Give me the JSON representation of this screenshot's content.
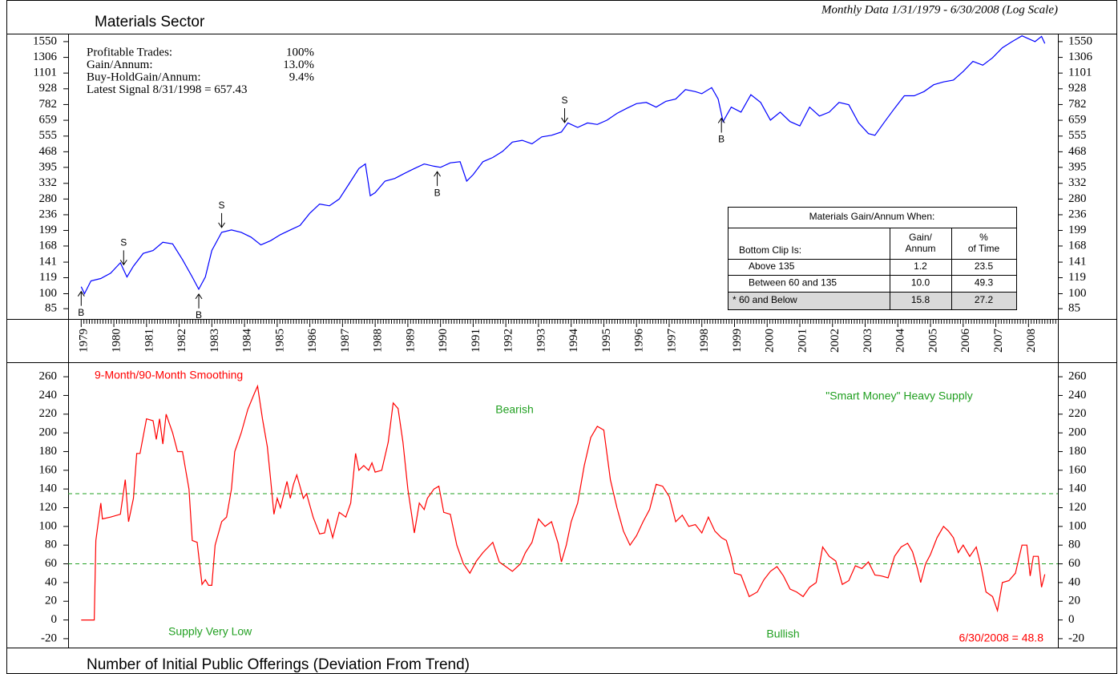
{
  "chart_data": [
    {
      "type": "line",
      "title": "Materials Sector",
      "subtitle": "Monthly Data 1/31/1979 - 6/30/2008 (Log Scale)",
      "log_scale": true,
      "ylim": [
        76,
        1690
      ],
      "yticks": [
        85,
        100,
        119,
        141,
        168,
        199,
        236,
        280,
        332,
        395,
        468,
        555,
        659,
        782,
        928,
        1101,
        1306,
        1550
      ],
      "xlim": [
        1978.6,
        2008.9
      ],
      "xticks": [
        1979,
        1980,
        1981,
        1982,
        1983,
        1984,
        1985,
        1986,
        1987,
        1988,
        1989,
        1990,
        1991,
        1992,
        1993,
        1994,
        1995,
        1996,
        1997,
        1998,
        1999,
        2000,
        2001,
        2002,
        2003,
        2004,
        2005,
        2006,
        2007,
        2008
      ],
      "series": [
        {
          "color": "#0000ff",
          "x": [
            1979.0,
            1979.1,
            1979.3,
            1979.6,
            1979.9,
            1980.2,
            1980.4,
            1980.6,
            1980.9,
            1981.2,
            1981.5,
            1981.8,
            1982.1,
            1982.4,
            1982.6,
            1982.8,
            1983.0,
            1983.3,
            1983.6,
            1983.9,
            1984.2,
            1984.5,
            1984.8,
            1985.1,
            1985.4,
            1985.7,
            1986.0,
            1986.3,
            1986.6,
            1986.9,
            1987.2,
            1987.5,
            1987.7,
            1987.85,
            1988.0,
            1988.3,
            1988.6,
            1988.9,
            1989.2,
            1989.5,
            1989.8,
            1990.0,
            1990.3,
            1990.6,
            1990.8,
            1991.0,
            1991.3,
            1991.6,
            1991.9,
            1992.2,
            1992.5,
            1992.8,
            1993.1,
            1993.4,
            1993.7,
            1993.9,
            1994.2,
            1994.5,
            1994.8,
            1995.1,
            1995.4,
            1995.7,
            1996.0,
            1996.3,
            1996.6,
            1996.9,
            1997.2,
            1997.5,
            1997.8,
            1998.0,
            1998.3,
            1998.5,
            1998.65,
            1998.9,
            1999.2,
            1999.5,
            1999.8,
            2000.1,
            2000.4,
            2000.7,
            2001.0,
            2001.3,
            2001.6,
            2001.9,
            2002.2,
            2002.5,
            2002.8,
            2003.1,
            2003.3,
            2003.6,
            2003.9,
            2004.2,
            2004.5,
            2004.8,
            2005.1,
            2005.4,
            2005.7,
            2006.0,
            2006.3,
            2006.6,
            2006.9,
            2007.2,
            2007.5,
            2007.8,
            2008.0,
            2008.2,
            2008.4,
            2008.5
          ],
          "values": [
            108,
            100,
            115,
            118,
            125,
            140,
            120,
            135,
            155,
            160,
            175,
            172,
            145,
            120,
            105,
            120,
            160,
            195,
            200,
            195,
            185,
            170,
            178,
            190,
            200,
            210,
            240,
            265,
            260,
            280,
            330,
            390,
            410,
            290,
            300,
            340,
            350,
            370,
            390,
            410,
            400,
            395,
            415,
            420,
            340,
            365,
            420,
            440,
            470,
            520,
            530,
            510,
            550,
            560,
            580,
            640,
            610,
            640,
            630,
            660,
            710,
            750,
            790,
            800,
            760,
            810,
            830,
            920,
            900,
            880,
            940,
            830,
            650,
            760,
            720,
            870,
            800,
            660,
            720,
            650,
            620,
            760,
            690,
            720,
            800,
            780,
            640,
            570,
            560,
            650,
            750,
            860,
            860,
            900,
            970,
            1000,
            1020,
            1120,
            1250,
            1200,
            1300,
            1450,
            1550,
            1650,
            1600,
            1550,
            1640,
            1520
          ]
        }
      ],
      "signals": [
        {
          "x": 1979.0,
          "label": "B"
        },
        {
          "x": 1980.3,
          "label": "S"
        },
        {
          "x": 1982.6,
          "label": "B"
        },
        {
          "x": 1983.3,
          "label": "S"
        },
        {
          "x": 1989.9,
          "label": "B"
        },
        {
          "x": 1993.8,
          "label": "S"
        },
        {
          "x": 1998.6,
          "label": "B"
        }
      ],
      "stats": [
        {
          "label": "Profitable Trades:",
          "value": "100%"
        },
        {
          "label": "Gain/Annum:",
          "value": "13.0%"
        },
        {
          "label": "Buy-HoldGain/Annum:",
          "value": "9.4%"
        },
        {
          "label": "Latest Signal 8/31/1998 = 657.43",
          "value": ""
        }
      ],
      "table": {
        "title": "Materials Gain/Annum When:",
        "header": [
          [
            "Bottom Clip Is:"
          ],
          [
            "Gain/",
            "Annum"
          ],
          [
            "%",
            "of Time"
          ]
        ],
        "rows": [
          [
            "Above 135",
            "1.2",
            "23.5"
          ],
          [
            "Between 60 and 135",
            "10.0",
            "49.3"
          ],
          [
            "* 60 and Below",
            "15.8",
            "27.2"
          ]
        ],
        "highlight_row": 2
      }
    },
    {
      "type": "line",
      "title": "Number of Initial Public Offerings (Deviation From Trend)",
      "ylim": [
        -29.5,
        275.5
      ],
      "yticks": [
        -20,
        0,
        20,
        40,
        60,
        80,
        100,
        120,
        140,
        160,
        180,
        200,
        220,
        240,
        260
      ],
      "xlim": [
        1978.6,
        2008.9
      ],
      "hlines": [
        135,
        60
      ],
      "hline_color": "#22a022",
      "annotations": [
        {
          "text": "9-Month/90-Month Smoothing",
          "color": "#ff0000"
        },
        {
          "text": "Bearish",
          "color": "#22a022"
        },
        {
          "text": "\"Smart Money\" Heavy Supply",
          "color": "#22a022"
        },
        {
          "text": "Supply Very Low",
          "color": "#22a022"
        },
        {
          "text": "Bullish",
          "color": "#22a022"
        },
        {
          "text": "6/30/2008 = 48.8",
          "color": "#ff0000"
        }
      ],
      "series": [
        {
          "color": "#ff0000",
          "x": [
            1979.0,
            1979.4,
            1979.45,
            1979.6,
            1979.65,
            1979.9,
            1980.2,
            1980.35,
            1980.45,
            1980.6,
            1980.7,
            1980.8,
            1981.0,
            1981.2,
            1981.3,
            1981.4,
            1981.5,
            1981.6,
            1981.8,
            1981.95,
            1982.1,
            1982.3,
            1982.4,
            1982.55,
            1982.7,
            1982.8,
            1982.9,
            1983.0,
            1983.1,
            1983.3,
            1983.45,
            1983.6,
            1983.7,
            1983.9,
            1984.1,
            1984.3,
            1984.4,
            1984.55,
            1984.7,
            1984.8,
            1984.9,
            1985.0,
            1985.1,
            1985.3,
            1985.4,
            1985.5,
            1985.6,
            1985.8,
            1985.9,
            1986.1,
            1986.3,
            1986.45,
            1986.55,
            1986.7,
            1986.9,
            1987.1,
            1987.25,
            1987.4,
            1987.5,
            1987.65,
            1987.8,
            1987.9,
            1988.0,
            1988.2,
            1988.4,
            1988.55,
            1988.7,
            1988.85,
            1989.0,
            1989.2,
            1989.35,
            1989.5,
            1989.6,
            1989.8,
            1989.95,
            1990.1,
            1990.3,
            1990.5,
            1990.7,
            1990.9,
            1991.1,
            1991.3,
            1991.6,
            1991.8,
            1992.0,
            1992.2,
            1992.45,
            1992.6,
            1992.8,
            1993.0,
            1993.2,
            1993.4,
            1993.6,
            1993.7,
            1993.85,
            1994.0,
            1994.2,
            1994.4,
            1994.6,
            1994.8,
            1995.0,
            1995.2,
            1995.4,
            1995.6,
            1995.8,
            1996.0,
            1996.2,
            1996.4,
            1996.6,
            1996.8,
            1997.0,
            1997.2,
            1997.4,
            1997.6,
            1997.8,
            1998.0,
            1998.2,
            1998.4,
            1998.6,
            1998.75,
            1998.9,
            1999.0,
            1999.2,
            1999.45,
            1999.7,
            1999.9,
            2000.1,
            2000.3,
            2000.5,
            2000.7,
            2000.9,
            2001.1,
            2001.3,
            2001.5,
            2001.7,
            2001.9,
            2002.1,
            2002.3,
            2002.5,
            2002.7,
            2002.9,
            2003.1,
            2003.3,
            2003.5,
            2003.7,
            2003.9,
            2004.1,
            2004.3,
            2004.45,
            2004.6,
            2004.7,
            2004.85,
            2005.0,
            2005.2,
            2005.4,
            2005.55,
            2005.7,
            2005.85,
            2006.0,
            2006.2,
            2006.4,
            2006.55,
            2006.7,
            2006.9,
            2007.05,
            2007.2,
            2007.4,
            2007.6,
            2007.8,
            2007.95,
            2008.05,
            2008.15,
            2008.3,
            2008.4,
            2008.5
          ],
          "values": [
            0,
            0,
            85,
            125,
            108,
            110,
            113,
            150,
            105,
            130,
            178,
            178,
            215,
            213,
            193,
            215,
            188,
            220,
            200,
            180,
            180,
            140,
            85,
            83,
            38,
            43,
            37,
            37,
            80,
            105,
            110,
            140,
            180,
            200,
            225,
            242,
            250,
            215,
            185,
            150,
            113,
            130,
            120,
            148,
            130,
            145,
            155,
            130,
            135,
            110,
            92,
            93,
            108,
            88,
            115,
            110,
            125,
            178,
            160,
            165,
            160,
            168,
            158,
            160,
            190,
            232,
            226,
            190,
            140,
            93,
            125,
            118,
            130,
            140,
            143,
            115,
            113,
            80,
            60,
            50,
            63,
            72,
            83,
            62,
            57,
            52,
            60,
            72,
            83,
            108,
            100,
            105,
            82,
            62,
            80,
            105,
            125,
            165,
            195,
            207,
            203,
            150,
            120,
            95,
            80,
            90,
            105,
            118,
            145,
            143,
            132,
            105,
            112,
            100,
            102,
            93,
            110,
            95,
            88,
            85,
            67,
            50,
            48,
            25,
            30,
            43,
            52,
            57,
            47,
            33,
            30,
            25,
            35,
            40,
            78,
            68,
            63,
            38,
            42,
            58,
            55,
            62,
            48,
            47,
            45,
            68,
            78,
            82,
            73,
            55,
            40,
            60,
            70,
            88,
            100,
            95,
            88,
            72,
            80,
            68,
            78,
            57,
            30,
            25,
            10,
            40,
            42,
            50,
            80,
            80,
            47,
            68,
            68,
            35,
            48.8
          ]
        }
      ]
    }
  ]
}
